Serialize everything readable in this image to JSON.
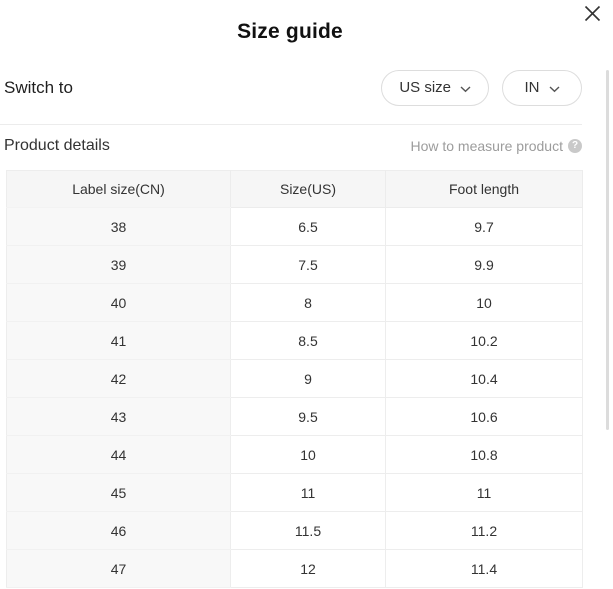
{
  "modal": {
    "title": "Size guide"
  },
  "switch": {
    "label": "Switch to",
    "size_standard": {
      "value": "US size"
    },
    "unit": {
      "value": "IN"
    }
  },
  "product_details": {
    "heading": "Product details",
    "how_to_measure": "How to measure product"
  },
  "icons": {
    "close_icon": "✕",
    "chevron_down_icon": "⌄",
    "question_mark_icon": "?"
  },
  "colors": {
    "muted_text": "#9c9c9c",
    "table_header_bg": "#f6f6f6",
    "label_column_bg": "#f8f8f8",
    "border": "#ededed"
  },
  "table": {
    "columns": [
      "Label size(CN)",
      "Size(US)",
      "Foot length"
    ],
    "rows": [
      [
        "38",
        "6.5",
        "9.7"
      ],
      [
        "39",
        "7.5",
        "9.9"
      ],
      [
        "40",
        "8",
        "10"
      ],
      [
        "41",
        "8.5",
        "10.2"
      ],
      [
        "42",
        "9",
        "10.4"
      ],
      [
        "43",
        "9.5",
        "10.6"
      ],
      [
        "44",
        "10",
        "10.8"
      ],
      [
        "45",
        "11",
        "11"
      ],
      [
        "46",
        "11.5",
        "11.2"
      ],
      [
        "47",
        "12",
        "11.4"
      ]
    ]
  }
}
